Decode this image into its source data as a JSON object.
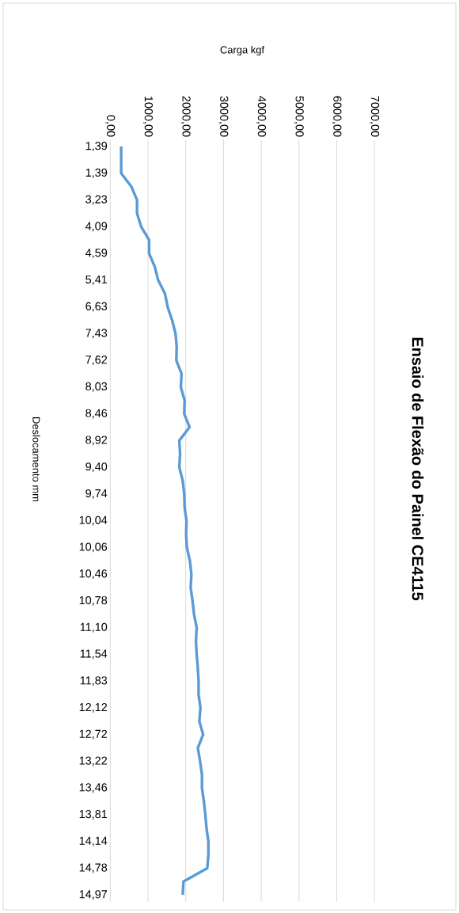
{
  "chart_data": {
    "type": "line",
    "title": "Ensaio de Flexão do Painel CE4115",
    "xlabel": "Carga kgf",
    "ylabel": "Deslocamento mm",
    "orientation": "horizontal",
    "categories": [
      "1,39",
      null,
      "1,39",
      null,
      "3,23",
      null,
      "4,09",
      null,
      "4,59",
      null,
      "5,41",
      null,
      "6,63",
      null,
      "7,43",
      null,
      "7,62",
      null,
      "8,03",
      null,
      "8,46",
      null,
      "8,92",
      null,
      "9,40",
      null,
      "9,74",
      null,
      "10,04",
      null,
      "10,06",
      null,
      "10,46",
      null,
      "10,78",
      null,
      "11,10",
      null,
      "11,54",
      null,
      "11,83",
      null,
      "12,12",
      null,
      "12,72",
      null,
      "13,22",
      null,
      "13,46",
      null,
      "13,81",
      null,
      "14,14",
      null,
      "14,78",
      null,
      "14,97"
    ],
    "series": [
      {
        "color": "#5b9bd5",
        "values": [
          290,
          290,
          290,
          560,
          710,
          710,
          820,
          1030,
          1030,
          1180,
          1270,
          1450,
          1520,
          1640,
          1730,
          1760,
          1750,
          1890,
          1870,
          1970,
          1960,
          2100,
          1830,
          1850,
          1830,
          1920,
          1960,
          1970,
          2020,
          2010,
          2030,
          2110,
          2150,
          2130,
          2180,
          2220,
          2290,
          2270,
          2290,
          2320,
          2340,
          2340,
          2390,
          2360,
          2460,
          2320,
          2380,
          2430,
          2430,
          2480,
          2520,
          2550,
          2600,
          2600,
          2570,
          1940,
          1920
        ]
      }
    ],
    "xlim": [
      0,
      7000
    ],
    "xticks": [
      {
        "value": 0,
        "label": "0,00"
      },
      {
        "value": 1000,
        "label": "1000,00"
      },
      {
        "value": 2000,
        "label": "2000,00"
      },
      {
        "value": 3000,
        "label": "3000,00"
      },
      {
        "value": 4000,
        "label": "4000,00"
      },
      {
        "value": 5000,
        "label": "5000,00"
      },
      {
        "value": 6000,
        "label": "6000,00"
      },
      {
        "value": 7000,
        "label": "7000,00"
      }
    ],
    "grid": "x",
    "marker": "none",
    "line_style": "solid"
  }
}
